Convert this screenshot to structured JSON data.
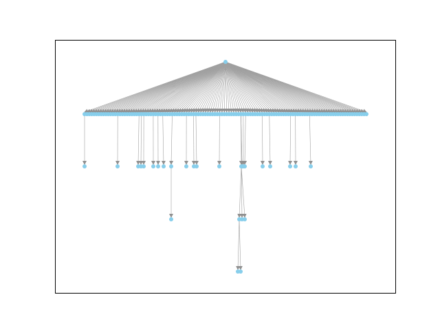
{
  "diagram": {
    "type": "tree-graph",
    "layout": "hierarchical-top-down",
    "directed": true,
    "frame": true,
    "colors": {
      "node_fill": "#87ceeb",
      "edge": "#a0a0a0",
      "arrow": "#909090",
      "frame": "#000000",
      "background": "#ffffff"
    },
    "levels": [
      {
        "level": 0,
        "node_count": 1
      },
      {
        "level": 1,
        "node_count": 120
      },
      {
        "level": 2,
        "node_count": 23
      },
      {
        "level": 3,
        "node_count": 4
      },
      {
        "level": 4,
        "node_count": 2
      }
    ]
  }
}
